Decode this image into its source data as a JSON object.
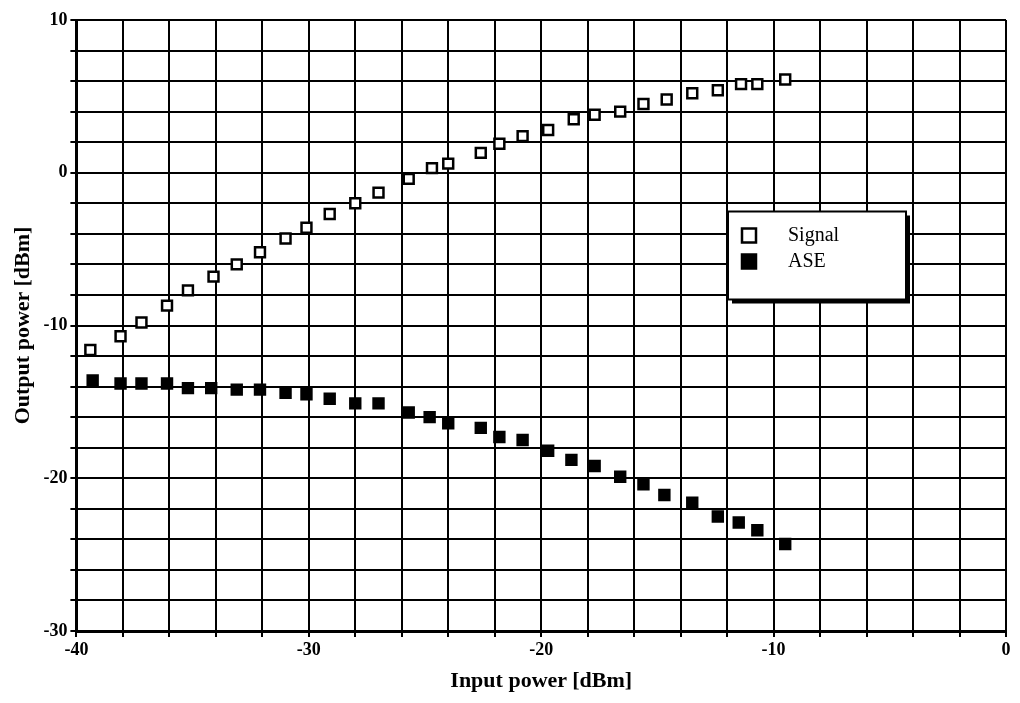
{
  "chart_data": {
    "type": "scatter",
    "xlabel": "Input power [dBm]",
    "ylabel": "Output power [dBm]",
    "xlim": [
      -40,
      0
    ],
    "ylim": [
      -30,
      10
    ],
    "xticks": [
      -40,
      {
        "value": -38,
        "label": null
      },
      {
        "value": -36,
        "label": null
      },
      {
        "value": -34,
        "label": null
      },
      {
        "value": -32,
        "label": null
      },
      -30,
      {
        "value": -28,
        "label": null
      },
      {
        "value": -26,
        "label": null
      },
      {
        "value": -24,
        "label": null
      },
      {
        "value": -22,
        "label": null
      },
      -20,
      {
        "value": -18,
        "label": null
      },
      {
        "value": -16,
        "label": null
      },
      {
        "value": -14,
        "label": null
      },
      {
        "value": -12,
        "label": null
      },
      -10,
      {
        "value": -8,
        "label": null
      },
      {
        "value": -6,
        "label": null
      },
      {
        "value": -4,
        "label": null
      },
      {
        "value": -2,
        "label": null
      },
      0
    ],
    "yticks": [
      -30,
      {
        "value": -28,
        "label": null
      },
      {
        "value": -26,
        "label": null
      },
      {
        "value": -24,
        "label": null
      },
      {
        "value": -22,
        "label": null
      },
      -20,
      {
        "value": -18,
        "label": null
      },
      {
        "value": -16,
        "label": null
      },
      {
        "value": -14,
        "label": null
      },
      {
        "value": -12,
        "label": null
      },
      -10,
      {
        "value": -8,
        "label": null
      },
      {
        "value": -6,
        "label": null
      },
      {
        "value": -4,
        "label": null
      },
      {
        "value": -2,
        "label": null
      },
      0,
      {
        "value": 2,
        "label": null
      },
      {
        "value": 4,
        "label": null
      },
      {
        "value": 6,
        "label": null
      },
      {
        "value": 8,
        "label": null
      },
      10
    ],
    "grid": true,
    "legend": "right",
    "marker": "square",
    "series": [
      {
        "name": "Signal",
        "color": "#ffffff",
        "x": [
          -39.4,
          -38.1,
          -37.2,
          -36.1,
          -35.2,
          -34.1,
          -33.1,
          -32.1,
          -31.0,
          -30.1,
          -29.1,
          -28.0,
          -27.0,
          -25.7,
          -24.7,
          -24.0,
          -22.6,
          -21.8,
          -20.8,
          -19.7,
          -18.6,
          -17.7,
          -16.6,
          -15.6,
          -14.6,
          -13.5,
          -12.4,
          -11.4,
          -10.7,
          -9.5
        ],
        "values": [
          -11.6,
          -10.7,
          -9.8,
          -8.7,
          -7.7,
          -6.8,
          -6.0,
          -5.2,
          -4.3,
          -3.6,
          -2.7,
          -2.0,
          -1.3,
          -0.4,
          0.3,
          0.6,
          1.3,
          1.9,
          2.4,
          2.8,
          3.5,
          3.8,
          4.0,
          4.5,
          4.8,
          5.2,
          5.4,
          5.8,
          5.8,
          6.1
        ]
      },
      {
        "name": "ASE",
        "color": "#000000",
        "x": [
          -39.3,
          -38.1,
          -37.2,
          -36.1,
          -35.2,
          -34.2,
          -33.1,
          -32.1,
          -31.0,
          -30.1,
          -29.1,
          -28.0,
          -27.0,
          -25.7,
          -24.8,
          -24.0,
          -22.6,
          -21.8,
          -20.8,
          -19.7,
          -18.7,
          -17.7,
          -16.6,
          -15.6,
          -14.7,
          -13.5,
          -12.4,
          -11.5,
          -10.7,
          -9.5
        ],
        "values": [
          -13.6,
          -13.8,
          -13.8,
          -13.8,
          -14.1,
          -14.1,
          -14.2,
          -14.2,
          -14.4,
          -14.5,
          -14.8,
          -15.1,
          -15.1,
          -15.7,
          -16.0,
          -16.4,
          -16.7,
          -17.3,
          -17.5,
          -18.2,
          -18.8,
          -19.2,
          -19.9,
          -20.4,
          -21.1,
          -21.6,
          -22.5,
          -22.9,
          -23.4,
          -24.3
        ]
      }
    ]
  }
}
